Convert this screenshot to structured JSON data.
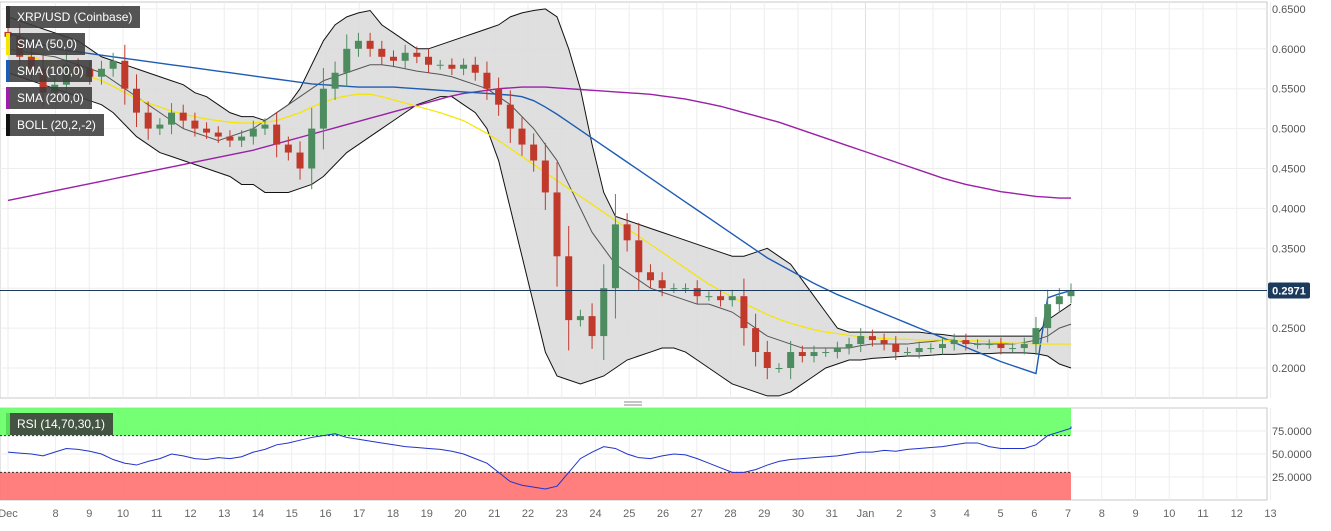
{
  "header": {
    "title": "XRP/USD (Coinbase)"
  },
  "legends": [
    {
      "label": "SMA (50,0)",
      "color": "#f5e500"
    },
    {
      "label": "SMA (100,0)",
      "color": "#1e5cb3"
    },
    {
      "label": "SMA (200,0)",
      "color": "#9b1fa8"
    },
    {
      "label": "BOLL (20,2,-2)",
      "color": "#111111"
    }
  ],
  "rsi_legend": {
    "label": "RSI (14,70,30,1)",
    "color": "#55dd55"
  },
  "last_price": "0.2971",
  "colors": {
    "up": "#4d8c5f",
    "down": "#c0392b",
    "band_fill": "#d9d9d9",
    "overbought": "#66ff66",
    "oversold": "#ff7070",
    "rsi_line": "#2233cc"
  },
  "chart_data": [
    {
      "type": "candlestick",
      "title": "XRP/USD (Coinbase)",
      "x_tick_labels": [
        "Dec",
        "8",
        "9",
        "10",
        "11",
        "12",
        "13",
        "14",
        "15",
        "16",
        "17",
        "18",
        "19",
        "20",
        "21",
        "22",
        "23",
        "24",
        "25",
        "26",
        "27",
        "28",
        "29",
        "30",
        "31",
        "Jan",
        "2",
        "3",
        "4",
        "5",
        "6",
        "7",
        "8",
        "9",
        "10",
        "11",
        "12",
        "13"
      ],
      "y_tick_labels": [
        "0.6500",
        "0.6000",
        "0.5500",
        "0.5000",
        "0.4500",
        "0.4000",
        "0.3500",
        "0.3000",
        "0.2500",
        "0.2000"
      ],
      "ylim": [
        0.175,
        0.66
      ],
      "closes": [
        0.615,
        0.59,
        0.575,
        0.545,
        0.555,
        0.58,
        0.575,
        0.565,
        0.575,
        0.585,
        0.55,
        0.52,
        0.5,
        0.505,
        0.52,
        0.51,
        0.5,
        0.495,
        0.49,
        0.485,
        0.49,
        0.5,
        0.505,
        0.48,
        0.47,
        0.45,
        0.5,
        0.55,
        0.57,
        0.6,
        0.61,
        0.6,
        0.59,
        0.585,
        0.595,
        0.59,
        0.58,
        0.58,
        0.575,
        0.58,
        0.57,
        0.55,
        0.53,
        0.5,
        0.48,
        0.46,
        0.42,
        0.34,
        0.26,
        0.265,
        0.24,
        0.3,
        0.38,
        0.36,
        0.32,
        0.31,
        0.3,
        0.3,
        0.3,
        0.29,
        0.29,
        0.285,
        0.29,
        0.25,
        0.22,
        0.2,
        0.2,
        0.22,
        0.215,
        0.22,
        0.22,
        0.225,
        0.23,
        0.24,
        0.235,
        0.23,
        0.22,
        0.22,
        0.225,
        0.225,
        0.23,
        0.235,
        0.23,
        0.23,
        0.23,
        0.225,
        0.225,
        0.23,
        0.25,
        0.28,
        0.29,
        0.2971
      ],
      "sma50": [
        0.6,
        0.595,
        0.59,
        0.585,
        0.58,
        0.575,
        0.57,
        0.565,
        0.56,
        0.553,
        0.545,
        0.538,
        0.532,
        0.527,
        0.522,
        0.518,
        0.515,
        0.512,
        0.51,
        0.508,
        0.507,
        0.507,
        0.508,
        0.51,
        0.515,
        0.52,
        0.527,
        0.533,
        0.538,
        0.541,
        0.543,
        0.543,
        0.54,
        0.536,
        0.532,
        0.528,
        0.524,
        0.52,
        0.515,
        0.51,
        0.502,
        0.494,
        0.485,
        0.475,
        0.465,
        0.455,
        0.445,
        0.435,
        0.425,
        0.415,
        0.405,
        0.395,
        0.385,
        0.375,
        0.365,
        0.355,
        0.345,
        0.335,
        0.325,
        0.315,
        0.305,
        0.297,
        0.289,
        0.281,
        0.274,
        0.267,
        0.261,
        0.256,
        0.252,
        0.248,
        0.245,
        0.243,
        0.241,
        0.239,
        0.238,
        0.237,
        0.236,
        0.236,
        0.235,
        0.235,
        0.235,
        0.234,
        0.234,
        0.234,
        0.233,
        0.232,
        0.231,
        0.231,
        0.23,
        0.23,
        0.23,
        0.23
      ],
      "sma100": [
        0.62,
        0.615,
        0.61,
        0.605,
        0.6,
        0.598,
        0.596,
        0.594,
        0.592,
        0.59,
        0.588,
        0.586,
        0.584,
        0.582,
        0.58,
        0.578,
        0.576,
        0.574,
        0.572,
        0.57,
        0.568,
        0.566,
        0.564,
        0.562,
        0.56,
        0.558,
        0.556,
        0.555,
        0.554,
        0.553,
        0.552,
        0.552,
        0.552,
        0.552,
        0.551,
        0.55,
        0.549,
        0.548,
        0.547,
        0.546,
        0.545,
        0.544,
        0.543,
        0.542,
        0.54,
        0.535,
        0.527,
        0.518,
        0.508,
        0.498,
        0.488,
        0.478,
        0.468,
        0.458,
        0.448,
        0.438,
        0.428,
        0.418,
        0.408,
        0.398,
        0.388,
        0.378,
        0.368,
        0.358,
        0.348,
        0.338,
        0.33,
        0.322,
        0.314,
        0.306,
        0.299,
        0.292,
        0.286,
        0.28,
        0.274,
        0.268,
        0.262,
        0.256,
        0.25,
        0.244,
        0.238,
        0.232,
        0.226,
        0.22,
        0.214,
        0.208,
        0.203,
        0.198,
        0.193,
        0.288,
        0.293,
        0.297
      ],
      "sma200": [
        0.41,
        0.413,
        0.416,
        0.419,
        0.422,
        0.425,
        0.428,
        0.431,
        0.434,
        0.437,
        0.44,
        0.443,
        0.446,
        0.449,
        0.452,
        0.455,
        0.458,
        0.461,
        0.464,
        0.467,
        0.47,
        0.473,
        0.477,
        0.481,
        0.485,
        0.489,
        0.493,
        0.497,
        0.501,
        0.505,
        0.509,
        0.513,
        0.517,
        0.521,
        0.525,
        0.529,
        0.533,
        0.537,
        0.541,
        0.544,
        0.546,
        0.548,
        0.55,
        0.551,
        0.552,
        0.552,
        0.552,
        0.551,
        0.55,
        0.549,
        0.548,
        0.547,
        0.546,
        0.545,
        0.544,
        0.543,
        0.541,
        0.539,
        0.537,
        0.534,
        0.531,
        0.528,
        0.524,
        0.52,
        0.516,
        0.512,
        0.508,
        0.503,
        0.498,
        0.493,
        0.488,
        0.483,
        0.478,
        0.473,
        0.468,
        0.463,
        0.458,
        0.453,
        0.448,
        0.443,
        0.438,
        0.434,
        0.43,
        0.427,
        0.424,
        0.421,
        0.419,
        0.417,
        0.415,
        0.414,
        0.413,
        0.413
      ],
      "boll_upper": [
        0.64,
        0.635,
        0.63,
        0.625,
        0.62,
        0.615,
        0.61,
        0.6,
        0.59,
        0.585,
        0.58,
        0.575,
        0.57,
        0.565,
        0.56,
        0.555,
        0.545,
        0.54,
        0.53,
        0.52,
        0.515,
        0.515,
        0.51,
        0.52,
        0.53,
        0.55,
        0.58,
        0.61,
        0.63,
        0.64,
        0.645,
        0.648,
        0.63,
        0.62,
        0.61,
        0.6,
        0.6,
        0.605,
        0.61,
        0.615,
        0.62,
        0.625,
        0.63,
        0.64,
        0.645,
        0.648,
        0.65,
        0.64,
        0.6,
        0.55,
        0.48,
        0.42,
        0.39,
        0.385,
        0.38,
        0.375,
        0.37,
        0.365,
        0.36,
        0.355,
        0.35,
        0.345,
        0.34,
        0.34,
        0.345,
        0.35,
        0.34,
        0.33,
        0.31,
        0.29,
        0.27,
        0.25,
        0.245,
        0.245,
        0.245,
        0.245,
        0.245,
        0.245,
        0.245,
        0.243,
        0.242,
        0.24,
        0.24,
        0.24,
        0.24,
        0.24,
        0.24,
        0.24,
        0.24,
        0.26,
        0.27,
        0.28
      ],
      "boll_middle": [
        0.6,
        0.597,
        0.595,
        0.592,
        0.59,
        0.585,
        0.58,
        0.575,
        0.57,
        0.56,
        0.55,
        0.54,
        0.53,
        0.52,
        0.51,
        0.5,
        0.495,
        0.49,
        0.485,
        0.49,
        0.495,
        0.5,
        0.51,
        0.52,
        0.53,
        0.54,
        0.55,
        0.56,
        0.565,
        0.57,
        0.575,
        0.58,
        0.58,
        0.578,
        0.575,
        0.572,
        0.57,
        0.568,
        0.565,
        0.56,
        0.555,
        0.55,
        0.54,
        0.53,
        0.515,
        0.5,
        0.48,
        0.46,
        0.43,
        0.4,
        0.37,
        0.35,
        0.33,
        0.32,
        0.31,
        0.3,
        0.295,
        0.29,
        0.285,
        0.28,
        0.28,
        0.275,
        0.27,
        0.26,
        0.25,
        0.24,
        0.235,
        0.23,
        0.225,
        0.225,
        0.225,
        0.225,
        0.225,
        0.228,
        0.23,
        0.23,
        0.23,
        0.23,
        0.232,
        0.233,
        0.235,
        0.235,
        0.232,
        0.23,
        0.23,
        0.23,
        0.23,
        0.232,
        0.235,
        0.24,
        0.25,
        0.255
      ],
      "boll_lower": [
        0.57,
        0.565,
        0.56,
        0.555,
        0.55,
        0.545,
        0.54,
        0.535,
        0.53,
        0.52,
        0.505,
        0.49,
        0.48,
        0.47,
        0.465,
        0.46,
        0.455,
        0.45,
        0.445,
        0.44,
        0.43,
        0.43,
        0.42,
        0.42,
        0.42,
        0.425,
        0.43,
        0.44,
        0.455,
        0.47,
        0.48,
        0.49,
        0.5,
        0.51,
        0.52,
        0.53,
        0.535,
        0.54,
        0.54,
        0.53,
        0.52,
        0.5,
        0.46,
        0.4,
        0.34,
        0.28,
        0.22,
        0.19,
        0.185,
        0.18,
        0.185,
        0.19,
        0.2,
        0.21,
        0.215,
        0.22,
        0.225,
        0.225,
        0.22,
        0.21,
        0.2,
        0.19,
        0.18,
        0.175,
        0.17,
        0.165,
        0.165,
        0.17,
        0.18,
        0.19,
        0.2,
        0.205,
        0.21,
        0.21,
        0.212,
        0.213,
        0.214,
        0.215,
        0.215,
        0.216,
        0.217,
        0.217,
        0.218,
        0.218,
        0.218,
        0.219,
        0.219,
        0.219,
        0.218,
        0.215,
        0.205,
        0.2
      ]
    },
    {
      "type": "line",
      "title": "RSI (14,70,30,1)",
      "y_tick_labels": [
        "75.0000",
        "50.0000",
        "25.0000"
      ],
      "ylim": [
        0,
        100
      ],
      "overbought": 70,
      "oversold": 30,
      "values": [
        52,
        51,
        50,
        48,
        52,
        56,
        55,
        53,
        50,
        44,
        40,
        38,
        42,
        45,
        50,
        48,
        45,
        44,
        46,
        45,
        47,
        52,
        55,
        60,
        62,
        65,
        68,
        70,
        72,
        68,
        66,
        64,
        62,
        60,
        58,
        57,
        56,
        55,
        53,
        50,
        45,
        40,
        30,
        20,
        16,
        14,
        12,
        15,
        30,
        45,
        52,
        58,
        56,
        50,
        46,
        45,
        48,
        50,
        49,
        45,
        40,
        35,
        30,
        30,
        33,
        38,
        42,
        44,
        45,
        46,
        47,
        48,
        50,
        52,
        52,
        54,
        53,
        55,
        56,
        57,
        58,
        60,
        62,
        62,
        58,
        56,
        56,
        56,
        60,
        70,
        74,
        78,
        80
      ]
    }
  ]
}
